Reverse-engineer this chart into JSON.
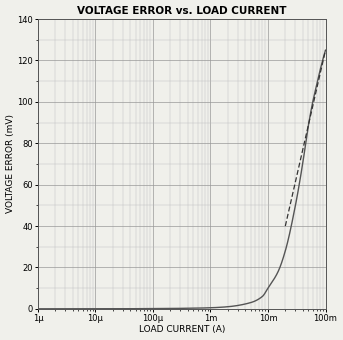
{
  "title": "VOLTAGE ERROR vs. LOAD CURRENT",
  "xlabel": "LOAD CURRENT (A)",
  "ylabel": "VOLTAGE ERROR (mV)",
  "xmin": 1e-06,
  "xmax": 0.1,
  "ymin": 0,
  "ymax": 140,
  "yticks": [
    0,
    20,
    40,
    60,
    80,
    100,
    120,
    140
  ],
  "xtick_labels": [
    "1μ",
    "10μ",
    "100μ",
    "1m",
    "10m",
    "100m"
  ],
  "xtick_vals": [
    1e-06,
    1e-05,
    0.0001,
    0.001,
    0.01,
    0.1
  ],
  "line_color": "#555555",
  "dashed_color": "#333333",
  "bg_color": "#f0f0eb",
  "title_fontsize": 7.5,
  "label_fontsize": 6.5,
  "tick_fontsize": 6.0,
  "curve_points_x": [
    1e-06,
    1e-05,
    0.0001,
    0.0005,
    0.001,
    0.002,
    0.005,
    0.008,
    0.01,
    0.015,
    0.02,
    0.03,
    0.04,
    0.05,
    0.06,
    0.07,
    0.08,
    0.1
  ],
  "curve_points_y": [
    0,
    0,
    0.1,
    0.3,
    0.5,
    1.0,
    3.0,
    6.0,
    10.0,
    18.0,
    28.0,
    50.0,
    70.0,
    88.0,
    100.0,
    108.0,
    115.0,
    125.0
  ],
  "dashed_points_x": [
    0.02,
    0.1
  ],
  "dashed_points_y": [
    40.0,
    125.0
  ]
}
